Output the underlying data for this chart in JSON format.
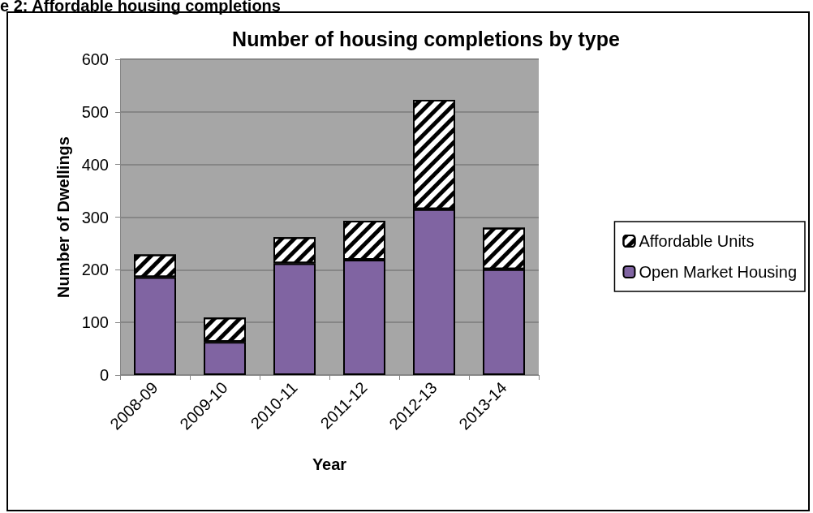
{
  "chart_data": {
    "type": "bar",
    "title": "Number of housing completions by type",
    "xlabel": "Year",
    "ylabel": "Number of Dwellings",
    "annotations": [
      "e 2: Affordable housing completions"
    ],
    "categories": [
      "2008-09",
      "2009-10",
      "2010-11",
      "2011-12",
      "2012-13",
      "2013-14"
    ],
    "stacked": true,
    "series": [
      {
        "name": "Open Market Housing",
        "color": "#8064a2",
        "values": [
          186,
          63,
          212,
          219,
          315,
          201
        ]
      },
      {
        "name": "Affordable Units",
        "color": "#ffffff",
        "values": [
          43,
          46,
          50,
          74,
          208,
          79
        ]
      }
    ],
    "ylim": [
      0,
      600
    ],
    "yticks": [
      0,
      100,
      200,
      300,
      400,
      500,
      600
    ],
    "grid": "y",
    "legend": "right"
  }
}
